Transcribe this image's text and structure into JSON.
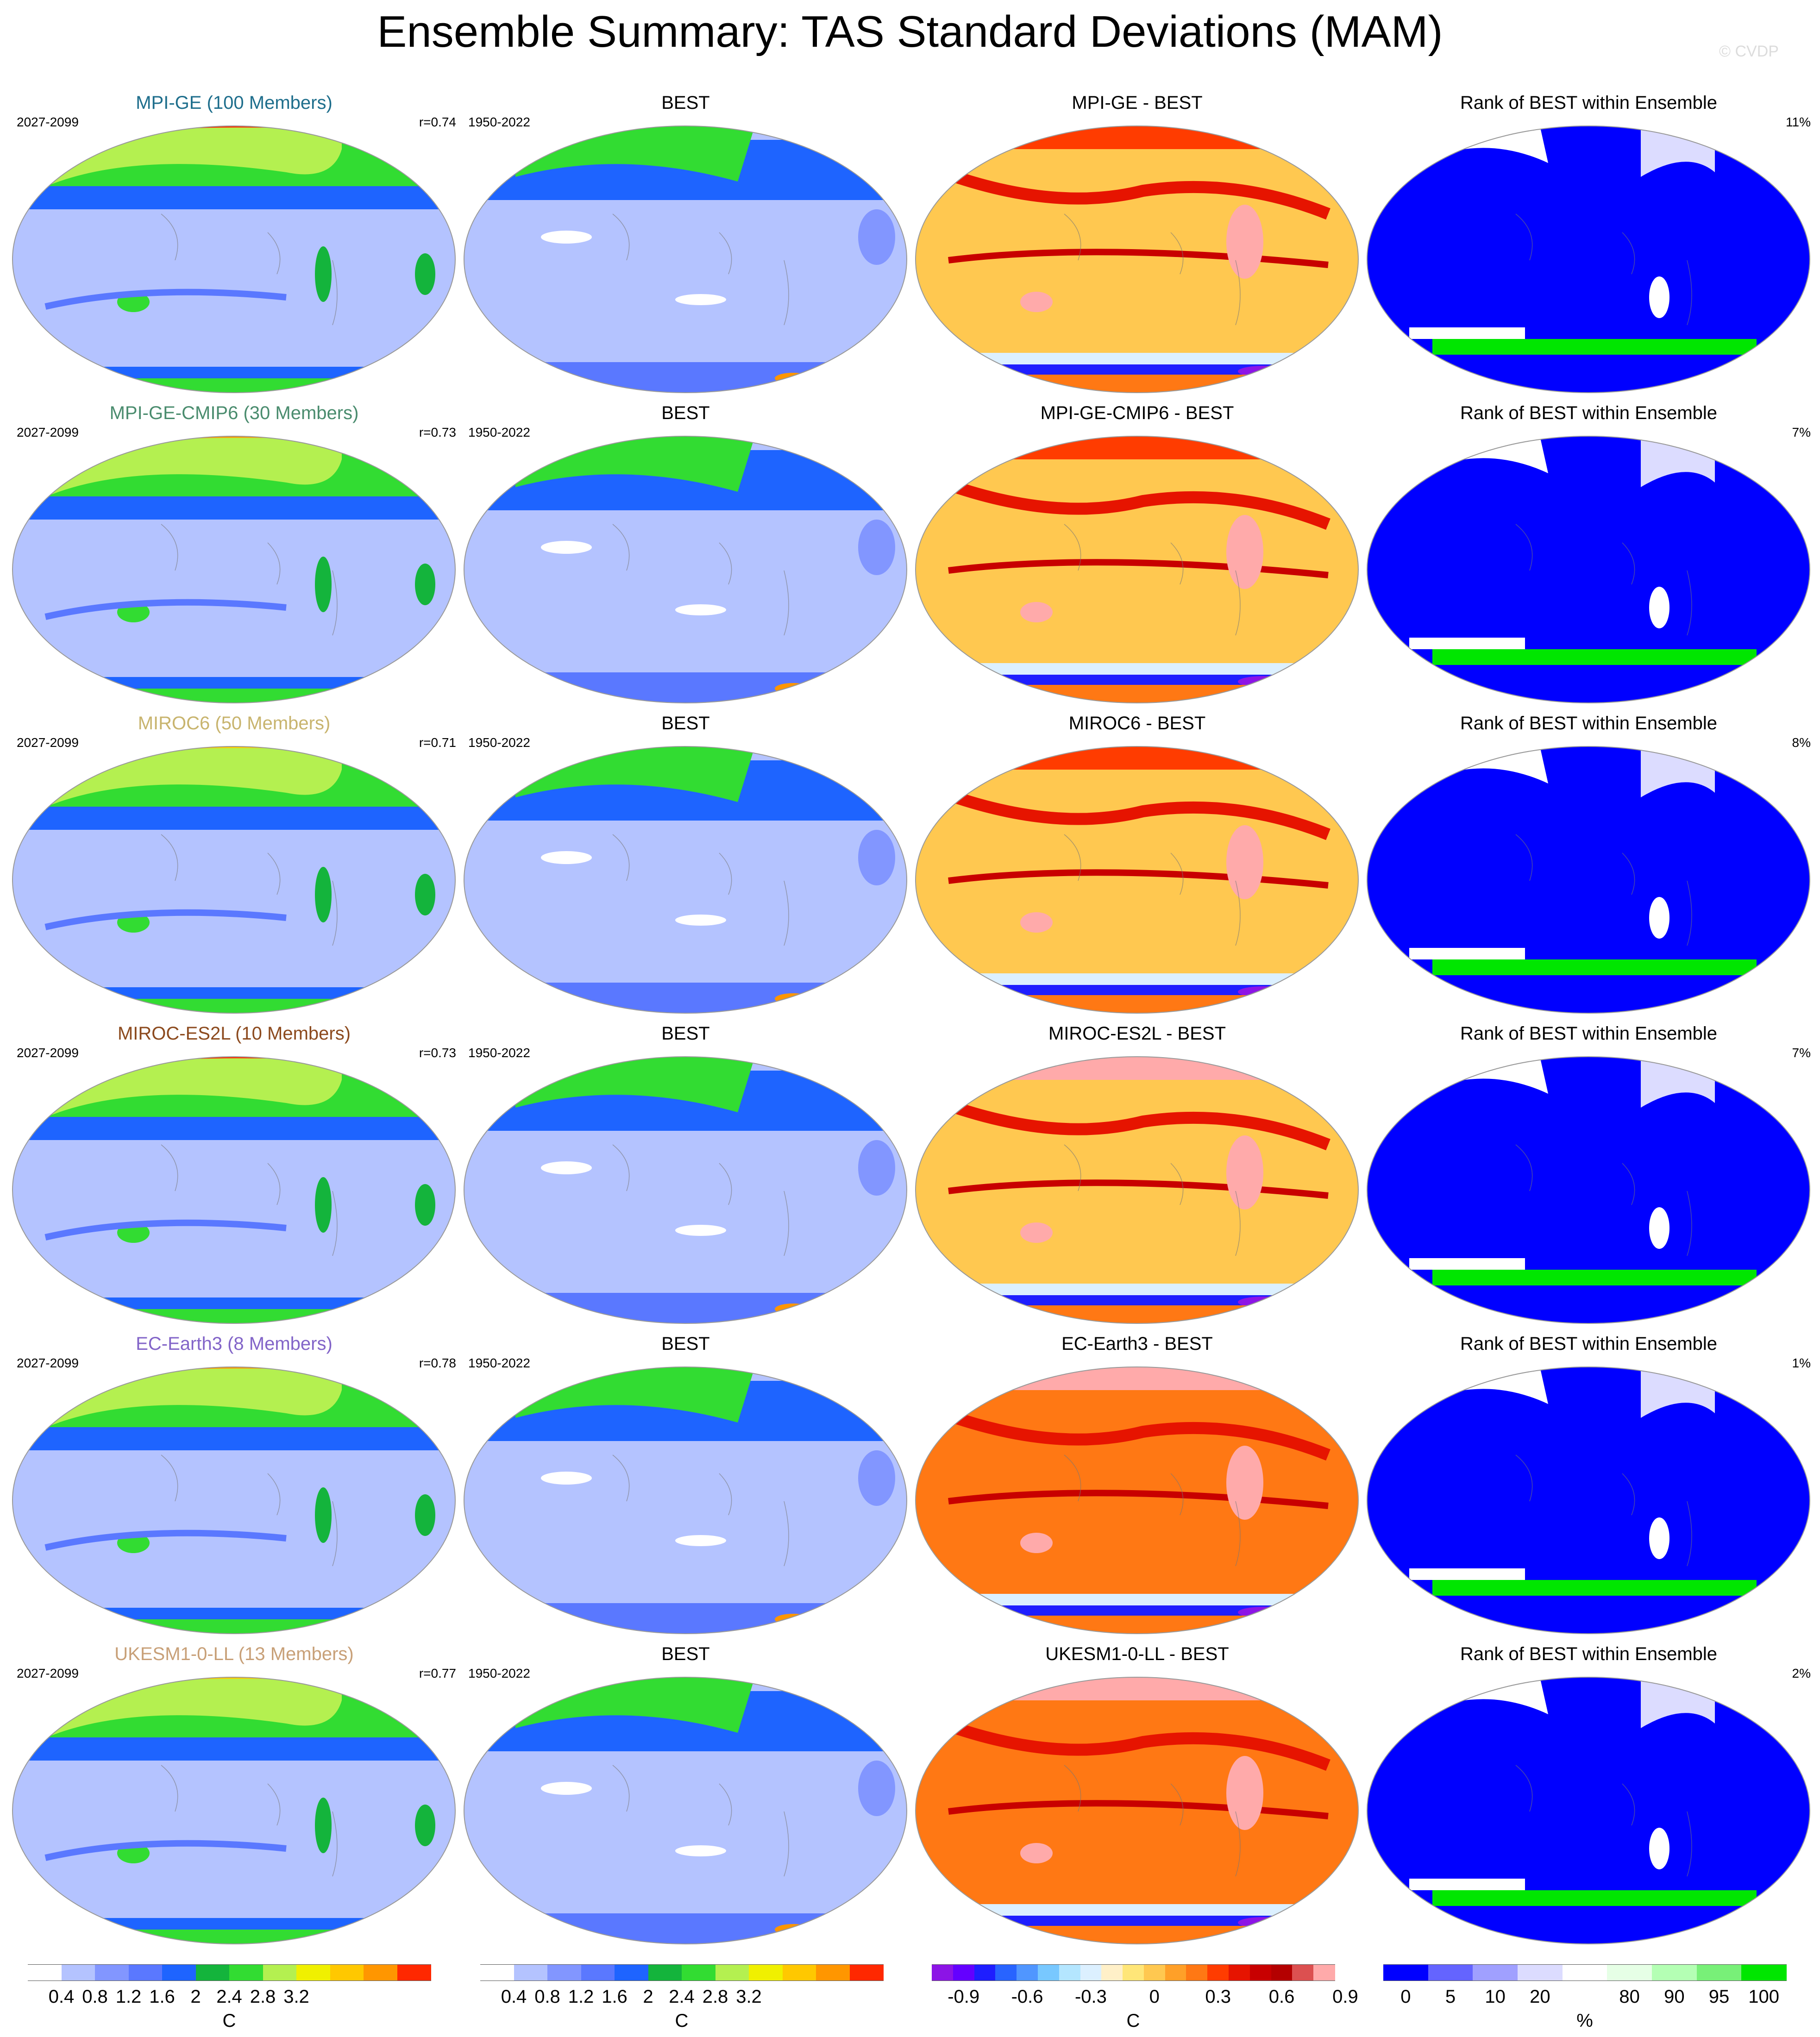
{
  "title": "Ensemble Summary: TAS Standard Deviations (MAM)",
  "credit": "© CVDP",
  "colors": {
    "model_titles": [
      "#1e6e8c",
      "#4a8c6e",
      "#c8b46e",
      "#8c4a1e",
      "#8264c8",
      "#c8a078"
    ],
    "std_scale": [
      "#ffffff",
      "#b4c3ff",
      "#8296ff",
      "#5a78ff",
      "#1e64ff",
      "#14b43c",
      "#32dc32",
      "#b4f050",
      "#f0f000",
      "#ffc800",
      "#ff9600",
      "#ff2800"
    ],
    "diff_scale": [
      "#8c14e6",
      "#6400ff",
      "#1e1eff",
      "#2864ff",
      "#5096ff",
      "#78c8ff",
      "#b4e6ff",
      "#dcf0ff",
      "#fff0c8",
      "#ffe678",
      "#ffc850",
      "#ffa028",
      "#ff7814",
      "#ff3c00",
      "#e61400",
      "#c80000",
      "#b40000",
      "#dc5050",
      "#ffaaaa"
    ],
    "rank_scale": [
      "#0000ff",
      "#6464ff",
      "#a0a0ff",
      "#dcdcff",
      "#ffffff",
      "#e6ffe6",
      "#b4ffb4",
      "#78f078",
      "#00e600"
    ]
  },
  "rows": [
    {
      "model": "MPI-GE (100 Members)",
      "model_period": "2027-2099",
      "r": "r=0.74",
      "obs_title": "BEST",
      "obs_period": "1950-2022",
      "diff_title": "MPI-GE - BEST",
      "rank_title": "Rank of BEST within Ensemble",
      "rank_pct": "11%"
    },
    {
      "model": "MPI-GE-CMIP6 (30 Members)",
      "model_period": "2027-2099",
      "r": "r=0.73",
      "obs_title": "BEST",
      "obs_period": "1950-2022",
      "diff_title": "MPI-GE-CMIP6 - BEST",
      "rank_title": "Rank of BEST within Ensemble",
      "rank_pct": "7%"
    },
    {
      "model": "MIROC6 (50 Members)",
      "model_period": "2027-2099",
      "r": "r=0.71",
      "obs_title": "BEST",
      "obs_period": "1950-2022",
      "diff_title": "MIROC6 - BEST",
      "rank_title": "Rank of BEST within Ensemble",
      "rank_pct": "8%"
    },
    {
      "model": "MIROC-ES2L (10 Members)",
      "model_period": "2027-2099",
      "r": "r=0.73",
      "obs_title": "BEST",
      "obs_period": "1950-2022",
      "diff_title": "MIROC-ES2L - BEST",
      "rank_title": "Rank of BEST within Ensemble",
      "rank_pct": "7%"
    },
    {
      "model": "EC-Earth3 (8 Members)",
      "model_period": "2027-2099",
      "r": "r=0.78",
      "obs_title": "BEST",
      "obs_period": "1950-2022",
      "diff_title": "EC-Earth3 - BEST",
      "rank_title": "Rank of BEST within Ensemble",
      "rank_pct": "1%"
    },
    {
      "model": "UKESM1-0-LL (13 Members)",
      "model_period": "2027-2099",
      "r": "r=0.77",
      "obs_title": "BEST",
      "obs_period": "1950-2022",
      "diff_title": "UKESM1-0-LL - BEST",
      "rank_title": "Rank of BEST within Ensemble",
      "rank_pct": "2%"
    }
  ],
  "colorbars": [
    {
      "labels": [
        "0.4",
        "0.8",
        "1.2",
        "1.6",
        "2",
        "2.4",
        "2.8",
        "3.2"
      ],
      "unit": "C"
    },
    {
      "labels": [
        "0.4",
        "0.8",
        "1.2",
        "1.6",
        "2",
        "2.4",
        "2.8",
        "3.2"
      ],
      "unit": "C"
    },
    {
      "labels": [
        "-0.9",
        "-0.6",
        "-0.3",
        "0",
        "0.3",
        "0.6",
        "0.9"
      ],
      "unit": "C"
    },
    {
      "labels": [
        "0",
        "5",
        "10",
        "20",
        "80",
        "90",
        "95",
        "100"
      ],
      "unit": "%"
    }
  ]
}
